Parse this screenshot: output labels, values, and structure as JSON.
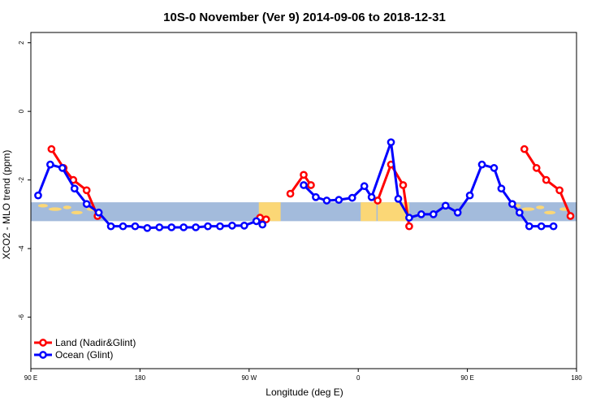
{
  "chart_data": {
    "type": "line",
    "title": "10S-0 November (Ver 9)   2014-09-06 to 2018-12-31",
    "xlabel": "Longitude (deg E)",
    "ylabel": "XCO2 - MLO trend (ppm)",
    "xlim": [
      90,
      540
    ],
    "ylim": [
      -7.5,
      2.3
    ],
    "x_ticks": [
      {
        "value": 90,
        "label": "90 E"
      },
      {
        "value": 180,
        "label": "180"
      },
      {
        "value": 270,
        "label": "90 W"
      },
      {
        "value": 360,
        "label": "0"
      },
      {
        "value": 450,
        "label": "90 E"
      },
      {
        "value": 540,
        "label": "180"
      }
    ],
    "y_ticks": [
      {
        "value": 2,
        "label": "2"
      },
      {
        "value": 0,
        "label": "0"
      },
      {
        "value": -2,
        "label": "-2"
      },
      {
        "value": -4,
        "label": "-4"
      },
      {
        "value": -6,
        "label": "-6"
      }
    ],
    "legend_position": "bottom-left",
    "map_strip": {
      "y_top": -2.65,
      "y_bottom": -3.2,
      "ocean_color": "#a3bbdc",
      "land_color": "#fbd776"
    },
    "series": [
      {
        "name": "Land (Nadir&Glint)",
        "color": "#ff0000",
        "segments": [
          [
            [
              107,
              -1.1
            ],
            [
              117,
              -1.65
            ],
            [
              125,
              -2.0
            ],
            [
              136,
              -2.3
            ],
            [
              145,
              -3.05
            ]
          ],
          [
            [
              279,
              -3.1
            ],
            [
              284,
              -3.15
            ]
          ],
          [
            [
              304,
              -2.4
            ],
            [
              315,
              -1.85
            ],
            [
              321,
              -2.15
            ]
          ],
          [
            [
              376,
              -2.6
            ],
            [
              387,
              -1.55
            ],
            [
              397,
              -2.15
            ],
            [
              402,
              -3.35
            ]
          ],
          [
            [
              497,
              -1.1
            ],
            [
              507,
              -1.65
            ],
            [
              515,
              -2.0
            ],
            [
              526,
              -2.3
            ],
            [
              535,
              -3.05
            ]
          ]
        ]
      },
      {
        "name": "Ocean (Glint)",
        "color": "#0000ff",
        "segments": [
          [
            [
              96,
              -2.45
            ],
            [
              106,
              -1.55
            ],
            [
              116,
              -1.65
            ],
            [
              126,
              -2.25
            ],
            [
              136,
              -2.7
            ],
            [
              146,
              -2.95
            ],
            [
              156,
              -3.35
            ],
            [
              166,
              -3.35
            ],
            [
              176,
              -3.35
            ],
            [
              186,
              -3.4
            ],
            [
              196,
              -3.38
            ],
            [
              206,
              -3.38
            ],
            [
              216,
              -3.38
            ],
            [
              226,
              -3.38
            ],
            [
              236,
              -3.35
            ],
            [
              246,
              -3.35
            ],
            [
              256,
              -3.33
            ],
            [
              266,
              -3.33
            ],
            [
              276,
              -3.2
            ],
            [
              281,
              -3.3
            ]
          ],
          [
            [
              315,
              -2.15
            ],
            [
              325,
              -2.5
            ],
            [
              334,
              -2.6
            ],
            [
              344,
              -2.58
            ],
            [
              355,
              -2.52
            ],
            [
              365,
              -2.18
            ],
            [
              371,
              -2.5
            ],
            [
              387,
              -0.9
            ],
            [
              393,
              -2.55
            ],
            [
              402,
              -3.1
            ],
            [
              412,
              -3.0
            ],
            [
              422,
              -3.0
            ],
            [
              432,
              -2.75
            ],
            [
              442,
              -2.95
            ],
            [
              452,
              -2.45
            ],
            [
              462,
              -1.55
            ],
            [
              472,
              -1.65
            ],
            [
              478,
              -2.25
            ],
            [
              487,
              -2.7
            ],
            [
              493,
              -2.95
            ],
            [
              501,
              -3.35
            ],
            [
              511,
              -3.35
            ],
            [
              521,
              -3.35
            ]
          ]
        ]
      }
    ]
  }
}
